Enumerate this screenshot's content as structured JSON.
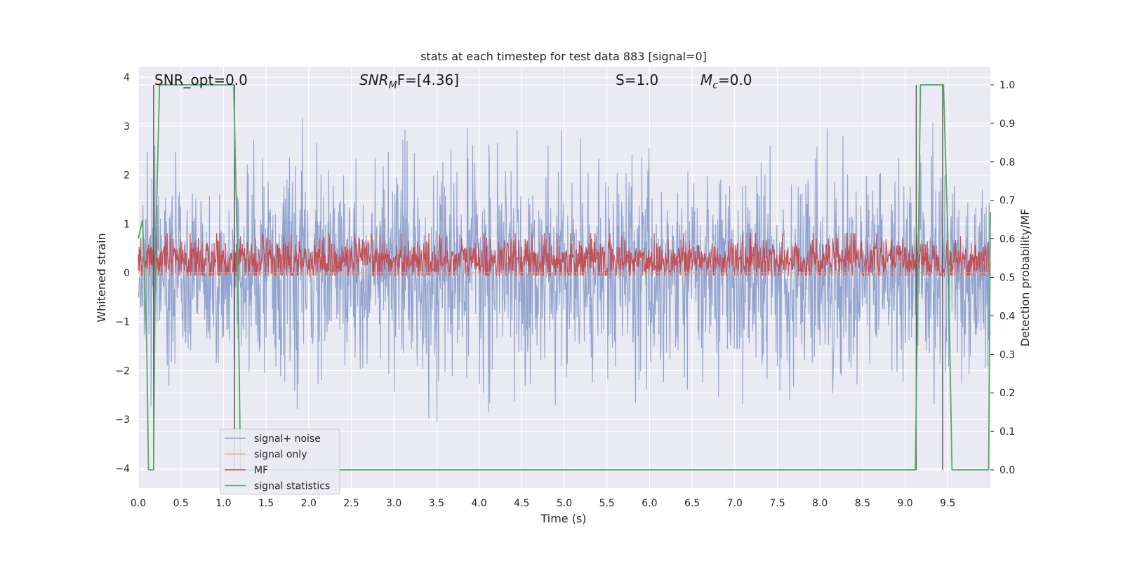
{
  "chart_data": {
    "type": "line",
    "title": "stats at each timestep for test data 883 [signal=0]",
    "xlabel": "Time (s)",
    "ylabel_left": "Whitened strain",
    "ylabel_right": "Detection probability/MF",
    "xlim": [
      0.0,
      10.0
    ],
    "ylim_left": [
      -4.3,
      4.2
    ],
    "ylim_right": [
      -0.05,
      1.035
    ],
    "xticks": [
      "0.0",
      "0.5",
      "1.0",
      "1.5",
      "2.0",
      "2.5",
      "3.0",
      "3.5",
      "4.0",
      "4.5",
      "5.0",
      "5.5",
      "6.0",
      "6.5",
      "7.0",
      "7.5",
      "8.0",
      "8.5",
      "9.0",
      "9.5"
    ],
    "yticks_left": [
      "4",
      "3",
      "2",
      "1",
      "0",
      "−1",
      "−2",
      "−3",
      "−4"
    ],
    "yticks_right": [
      "1.0",
      "0.9",
      "0.8",
      "0.7",
      "0.6",
      "0.5",
      "0.4",
      "0.3",
      "0.2",
      "0.1",
      "0.0"
    ],
    "grid": true,
    "legend_position": "lower-left",
    "annotations": [
      {
        "lead": "SNR_opt=0.0",
        "sub": "",
        "tail": ""
      },
      {
        "lead": "SNR",
        "sub": "M",
        "tail": "F=[4.36]"
      },
      {
        "lead": "S",
        "sub": "",
        "tail": "=1.0"
      },
      {
        "lead": "M",
        "sub": "c",
        "tail": "=0.0"
      }
    ],
    "colors": {
      "noise": "#8da0cb",
      "signal": "#e8a37f",
      "mf": "#c44e52",
      "stats": "#55a868",
      "vline": "#555555",
      "background": "#eaeaf2"
    },
    "series": [
      {
        "name": "signal+ noise",
        "axis": "left",
        "kind": "noise",
        "sample_rate_hz": 200,
        "amplitude_sigma": 1.0
      },
      {
        "name": "signal only",
        "axis": "left",
        "kind": "flat",
        "value": 0.0
      },
      {
        "name": "MF",
        "axis": "right",
        "kind": "band",
        "center": 0.545,
        "spread": 0.03
      },
      {
        "name": "signal statistics",
        "axis": "right",
        "kind": "line",
        "x": [
          0.0,
          0.05,
          0.1,
          0.12,
          0.18,
          0.2,
          0.25,
          0.3,
          1.12,
          1.17,
          1.2,
          9.12,
          9.18,
          9.25,
          9.45,
          9.5,
          9.55,
          9.98,
          10.0
        ],
        "y": [
          0.6,
          0.65,
          0.32,
          0.0,
          0.0,
          0.55,
          1.0,
          1.0,
          1.0,
          0.5,
          0.0,
          0.0,
          1.0,
          1.0,
          1.0,
          0.62,
          0.0,
          0.0,
          0.67
        ]
      }
    ],
    "vlines": [
      0.18,
      1.13,
      9.13,
      9.44
    ]
  }
}
